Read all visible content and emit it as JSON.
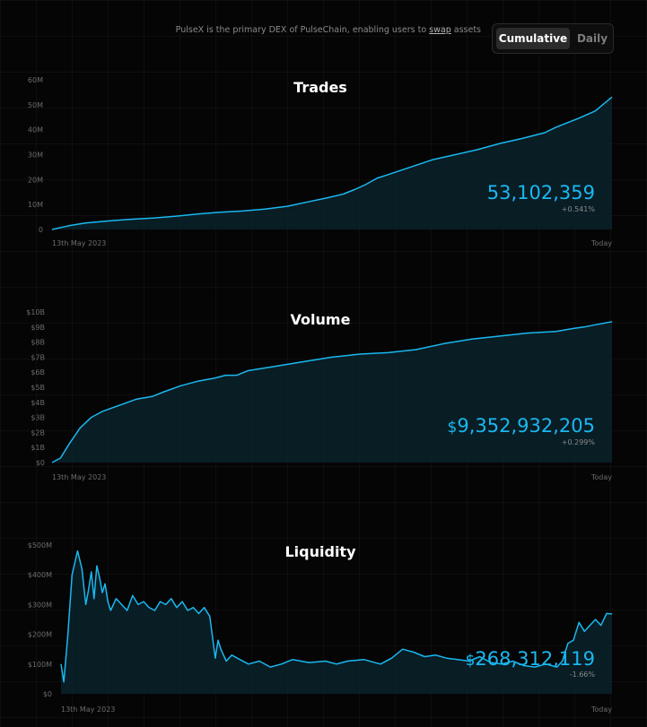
{
  "header": {
    "tagline_pre": "PulseX is the primary DEX of PulseChain, enabling users to ",
    "tagline_link": "swap",
    "tagline_post": " assets",
    "toggle": {
      "active": "Cumulative",
      "inactive": "Daily"
    }
  },
  "colors": {
    "line": "#1ab8f0",
    "value": "#1ab8f0",
    "fill": "#0b2530"
  },
  "chart_data": [
    {
      "type": "area",
      "title": "Trades",
      "value_label": "53,102,359",
      "change_label": "+0.541%",
      "x_start_label": "13th May 2023",
      "x_end_label": "Today",
      "yticks": [
        "0",
        "10M",
        "20M",
        "30M",
        "40M",
        "50M",
        "60M"
      ],
      "ylim": [
        0,
        60000000
      ],
      "series": [
        {
          "x": [
            0,
            0.03,
            0.06,
            0.1,
            0.14,
            0.18,
            0.22,
            0.26,
            0.3,
            0.34,
            0.38,
            0.42,
            0.46,
            0.49,
            0.52,
            0.54,
            0.56,
            0.58,
            0.6,
            0.64,
            0.68,
            0.72,
            0.76,
            0.8,
            0.84,
            0.88,
            0.9,
            0.94,
            0.97,
            1.0
          ],
          "values": [
            0,
            1500000,
            2600000,
            3400000,
            4100000,
            4600000,
            5300000,
            6200000,
            6900000,
            7400000,
            8200000,
            9300000,
            11200000,
            12600000,
            14200000,
            16000000,
            18000000,
            20500000,
            22000000,
            25000000,
            28000000,
            30000000,
            32000000,
            34500000,
            36500000,
            38800000,
            41000000,
            44500000,
            47500000,
            53102359
          ]
        }
      ]
    },
    {
      "type": "area",
      "title": "Volume",
      "value_label": "9,352,932,205",
      "value_prefix": "$",
      "change_label": "+0.299%",
      "x_start_label": "13th May 2023",
      "x_end_label": "Today",
      "yticks": [
        "$0",
        "$1B",
        "$2B",
        "$3B",
        "$4B",
        "$5B",
        "$6B",
        "$7B",
        "$8B",
        "$9B",
        "$10B"
      ],
      "ylim": [
        0,
        10000000000
      ],
      "series": [
        {
          "x": [
            0,
            0.015,
            0.03,
            0.05,
            0.07,
            0.09,
            0.12,
            0.15,
            0.18,
            0.2,
            0.23,
            0.26,
            0.29,
            0.31,
            0.33,
            0.35,
            0.4,
            0.45,
            0.5,
            0.55,
            0.6,
            0.65,
            0.7,
            0.75,
            0.8,
            0.85,
            0.9,
            0.93,
            0.95,
            0.97,
            1.0
          ],
          "values": [
            0,
            300000000,
            1200000000,
            2300000000,
            3000000000,
            3400000000,
            3800000000,
            4200000000,
            4400000000,
            4700000000,
            5100000000,
            5400000000,
            5600000000,
            5800000000,
            5800000000,
            6100000000,
            6400000000,
            6700000000,
            7000000000,
            7200000000,
            7300000000,
            7500000000,
            7900000000,
            8200000000,
            8400000000,
            8600000000,
            8700000000,
            8900000000,
            9000000000,
            9150000000,
            9352932205
          ]
        }
      ]
    },
    {
      "type": "area",
      "title": "Liquidity",
      "value_label": "268,312,119",
      "value_prefix": "$",
      "change_label": "-1.66%",
      "x_start_label": "13th May 2023",
      "x_end_label": "Today",
      "yticks": [
        "$0",
        "$100M",
        "$200M",
        "$300M",
        "$400M",
        "$500M"
      ],
      "ylim": [
        0,
        500000000
      ],
      "series": [
        {
          "x": [
            0,
            0.005,
            0.012,
            0.02,
            0.03,
            0.038,
            0.045,
            0.05,
            0.055,
            0.06,
            0.065,
            0.07,
            0.075,
            0.08,
            0.085,
            0.09,
            0.1,
            0.11,
            0.12,
            0.13,
            0.14,
            0.15,
            0.16,
            0.17,
            0.18,
            0.19,
            0.2,
            0.21,
            0.22,
            0.23,
            0.24,
            0.25,
            0.26,
            0.27,
            0.28,
            0.285,
            0.29,
            0.3,
            0.31,
            0.32,
            0.34,
            0.36,
            0.38,
            0.4,
            0.42,
            0.45,
            0.48,
            0.5,
            0.52,
            0.55,
            0.58,
            0.6,
            0.62,
            0.64,
            0.66,
            0.68,
            0.7,
            0.72,
            0.74,
            0.76,
            0.78,
            0.8,
            0.82,
            0.84,
            0.86,
            0.88,
            0.9,
            0.91,
            0.92,
            0.93,
            0.94,
            0.95,
            0.96,
            0.97,
            0.98,
            0.99,
            1.0
          ],
          "values": [
            100000000,
            40000000,
            190000000,
            400000000,
            480000000,
            420000000,
            300000000,
            350000000,
            410000000,
            320000000,
            430000000,
            390000000,
            340000000,
            370000000,
            310000000,
            280000000,
            320000000,
            300000000,
            280000000,
            330000000,
            300000000,
            310000000,
            290000000,
            280000000,
            310000000,
            300000000,
            320000000,
            290000000,
            310000000,
            280000000,
            290000000,
            270000000,
            290000000,
            260000000,
            120000000,
            180000000,
            150000000,
            110000000,
            130000000,
            120000000,
            100000000,
            110000000,
            90000000,
            100000000,
            115000000,
            105000000,
            110000000,
            100000000,
            110000000,
            115000000,
            100000000,
            120000000,
            150000000,
            140000000,
            125000000,
            130000000,
            120000000,
            115000000,
            110000000,
            125000000,
            105000000,
            100000000,
            110000000,
            95000000,
            90000000,
            100000000,
            90000000,
            110000000,
            170000000,
            180000000,
            240000000,
            210000000,
            230000000,
            250000000,
            230000000,
            270000000,
            268312119
          ]
        }
      ]
    }
  ]
}
